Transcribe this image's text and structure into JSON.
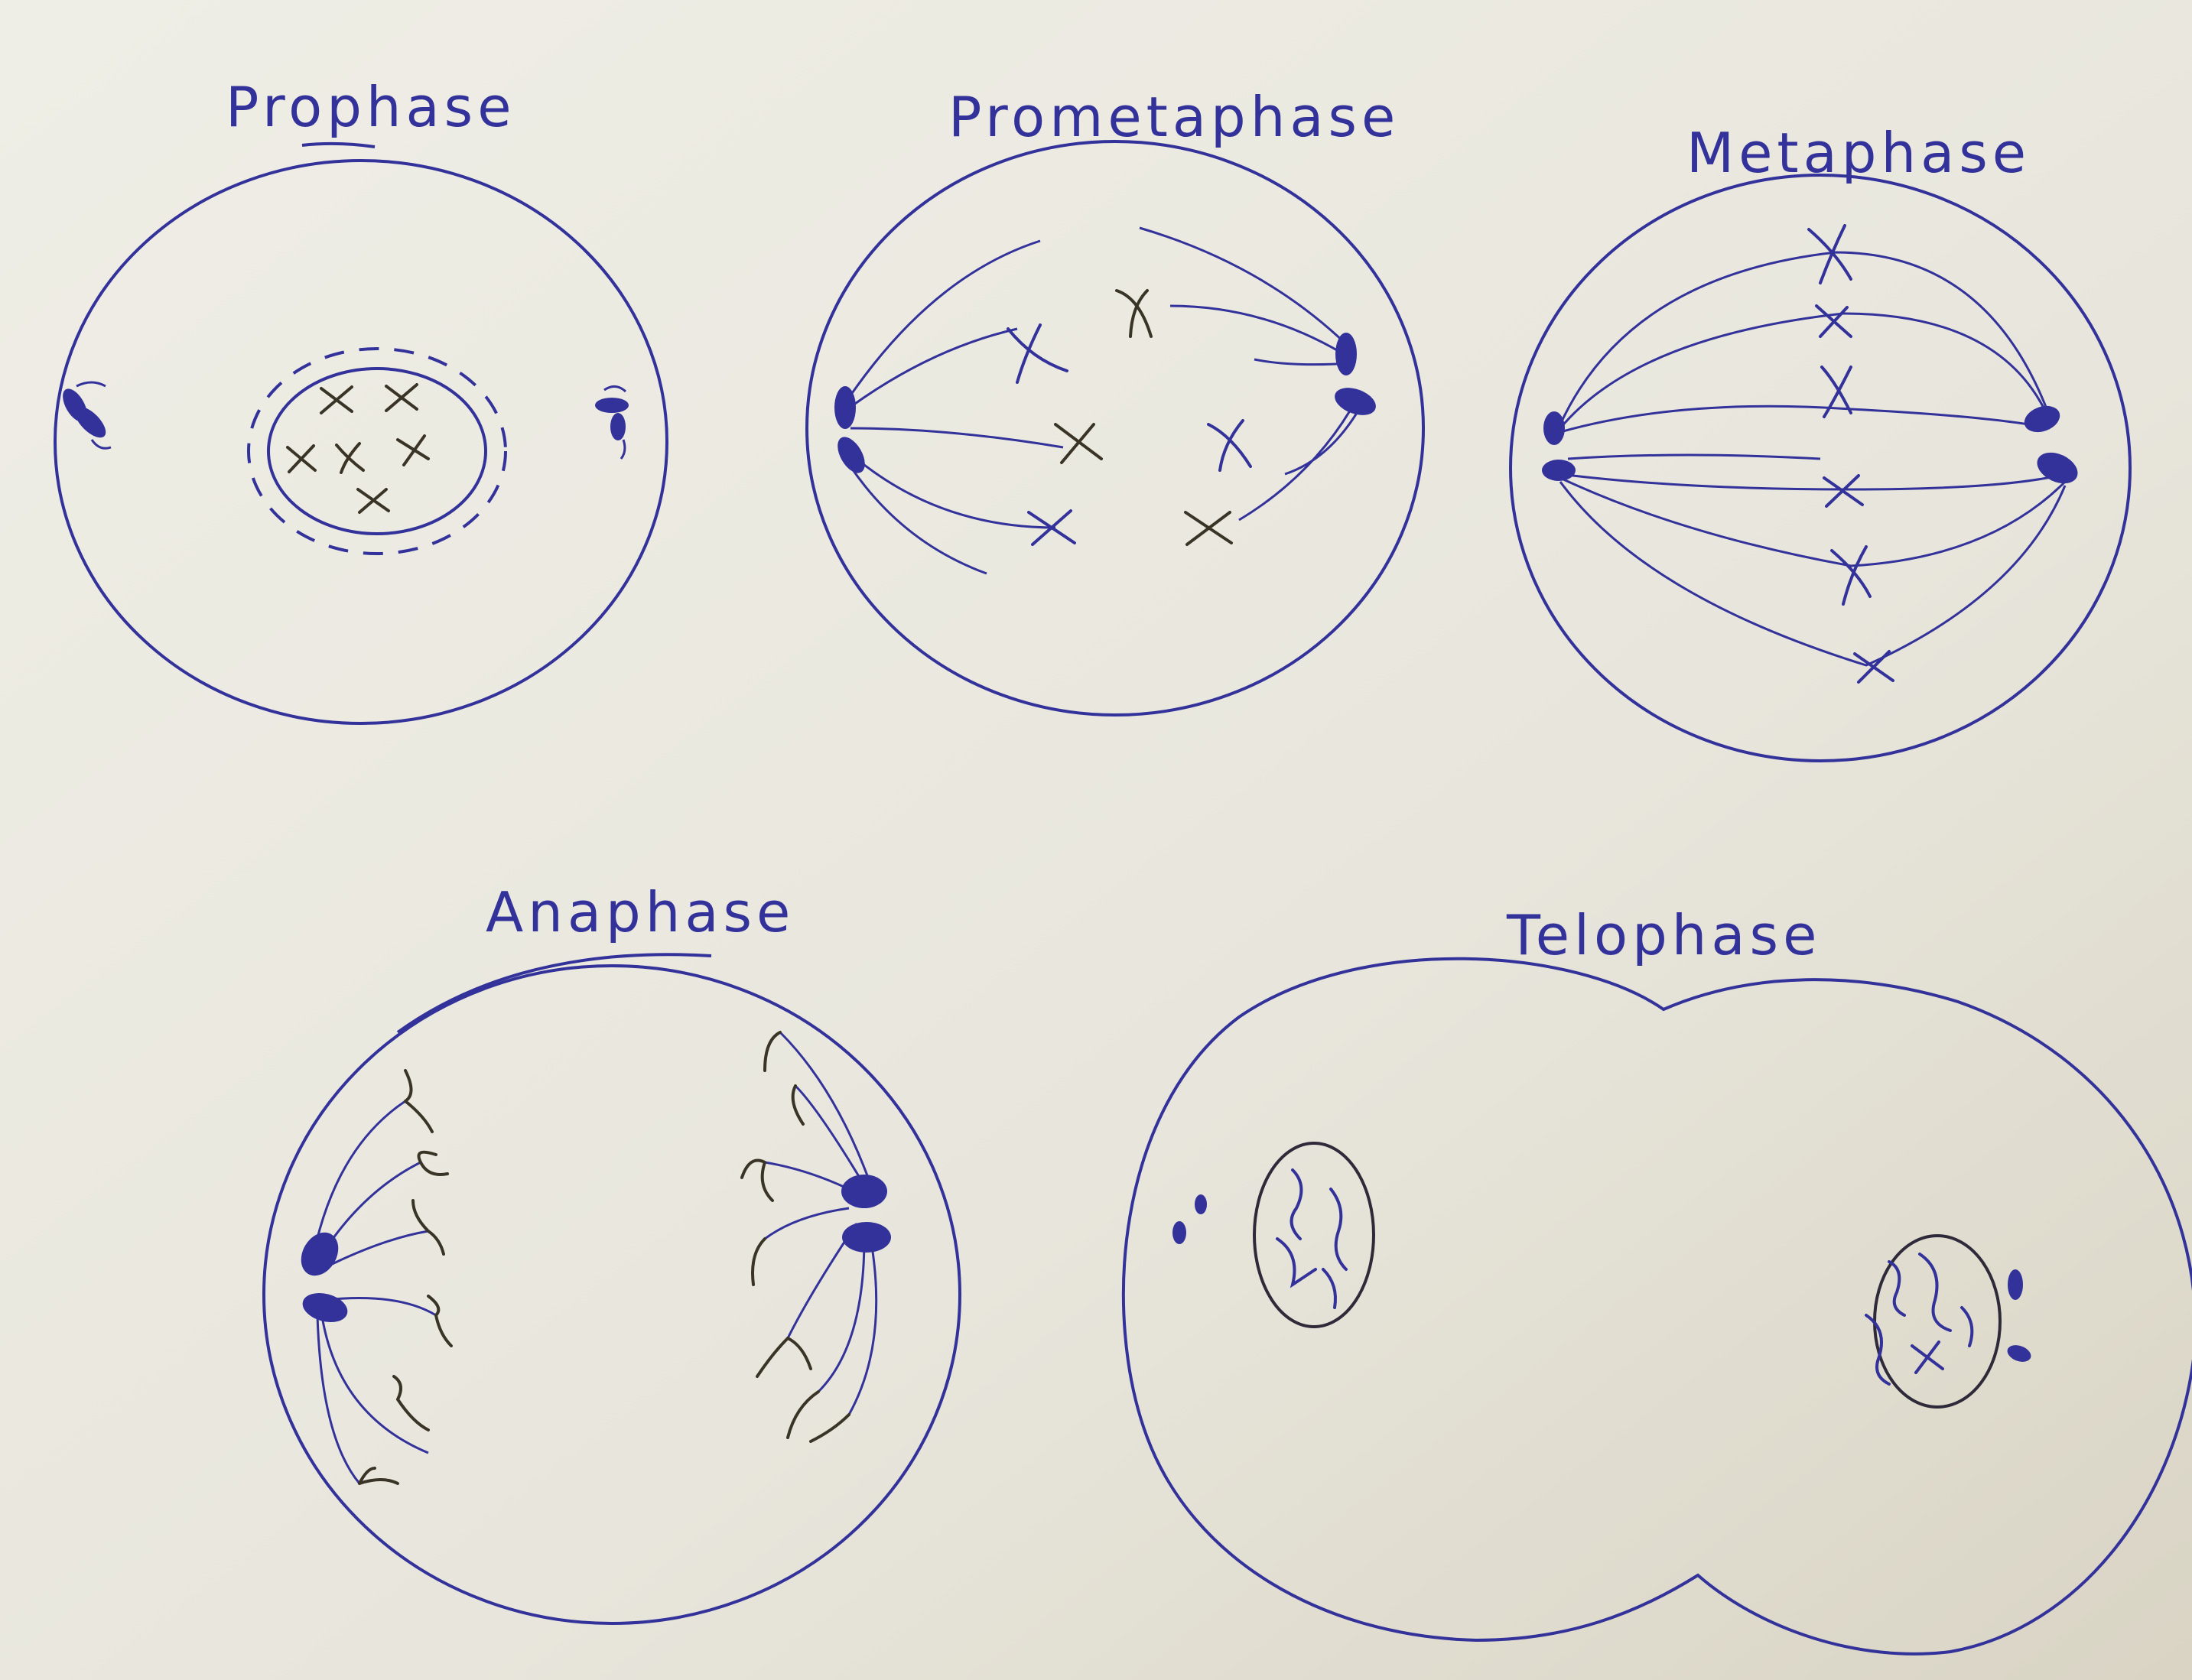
{
  "colors": {
    "paper": "#ecebe3",
    "ink_blue": "#33329a",
    "ink_dark": "#2e2a3a",
    "chromosome": "#3a3426"
  },
  "stages": [
    {
      "label": "Prophase"
    },
    {
      "label": "Prometaphase"
    },
    {
      "label": "Metaphase"
    },
    {
      "label": "Anaphase"
    },
    {
      "label": "Telophase"
    }
  ]
}
